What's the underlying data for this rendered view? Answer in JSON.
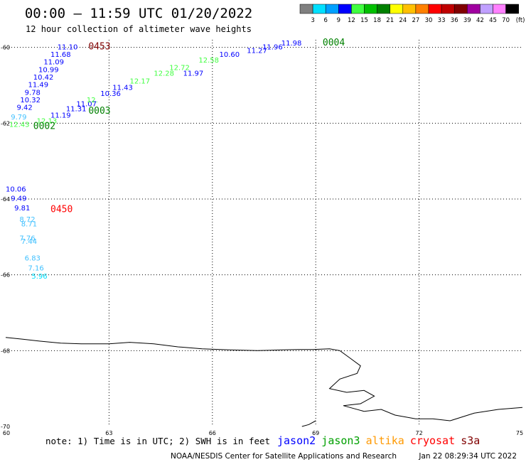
{
  "chart_data": {
    "type": "scatter",
    "title": "00:00 – 11:59 UTC 01/20/2022",
    "subtitle": "12 hour collection of altimeter wave heights",
    "x_ticks": [
      "60",
      "63",
      "66",
      "69",
      "72",
      "75"
    ],
    "y_ticks": [
      "-60",
      "-62",
      "-64",
      "-66",
      "-68",
      "-70"
    ],
    "xlim": [
      60,
      75
    ],
    "ylim": [
      -70,
      -59.8
    ],
    "grid": "dotted",
    "legend_scale": {
      "unit": "(ft)",
      "labels": [
        "3",
        "6",
        "9",
        "12",
        "15",
        "18",
        "21",
        "24",
        "27",
        "30",
        "33",
        "36",
        "39",
        "42",
        "45",
        "70"
      ],
      "colors": [
        "#808080",
        "#00e0ff",
        "#00a0ff",
        "#0000ff",
        "#40ff40",
        "#00c000",
        "#008000",
        "#ffff00",
        "#ffc000",
        "#ff8000",
        "#ff0000",
        "#c00000",
        "#800000",
        "#a000a0",
        "#c0a0ff",
        "#ff80ff",
        "#000000"
      ]
    },
    "points": [
      {
        "lon": 61.5,
        "lat": -60.05,
        "swh": "11.10",
        "color": "#0000ff"
      },
      {
        "lon": 61.3,
        "lat": -60.25,
        "swh": "11.68",
        "color": "#0000ff"
      },
      {
        "lon": 61.1,
        "lat": -60.45,
        "swh": "11.09",
        "color": "#0000ff"
      },
      {
        "lon": 60.95,
        "lat": -60.65,
        "swh": "10.99",
        "color": "#0000ff"
      },
      {
        "lon": 60.8,
        "lat": -60.85,
        "swh": "10.42",
        "color": "#0000ff"
      },
      {
        "lon": 60.65,
        "lat": -61.05,
        "swh": "11.49",
        "color": "#0000ff"
      },
      {
        "lon": 60.55,
        "lat": -61.25,
        "swh": "9.78",
        "color": "#0000ff"
      },
      {
        "lon": 60.42,
        "lat": -61.45,
        "swh": "10.32",
        "color": "#0000ff"
      },
      {
        "lon": 60.32,
        "lat": -61.65,
        "swh": "9.42",
        "color": "#0000ff"
      },
      {
        "lon": 60.15,
        "lat": -61.9,
        "swh": "9.79",
        "color": "#40c0ff"
      },
      {
        "lon": 60.1,
        "lat": -62.1,
        "swh": "12.43",
        "color": "#40ff40"
      },
      {
        "lon": 60.9,
        "lat": -62.0,
        "swh": "12.13",
        "color": "#40ff40"
      },
      {
        "lon": 61.3,
        "lat": -61.85,
        "swh": "11.19",
        "color": "#0000ff"
      },
      {
        "lon": 61.75,
        "lat": -61.68,
        "swh": "11.31",
        "color": "#0000ff"
      },
      {
        "lon": 62.05,
        "lat": -61.55,
        "swh": "11.07",
        "color": "#0000ff"
      },
      {
        "lon": 62.35,
        "lat": -61.45,
        "swh": "12.",
        "color": "#40ff40"
      },
      {
        "lon": 62.75,
        "lat": -61.28,
        "swh": "10.36",
        "color": "#0000ff"
      },
      {
        "lon": 63.1,
        "lat": -61.12,
        "swh": "11.43",
        "color": "#0000ff"
      },
      {
        "lon": 63.6,
        "lat": -60.95,
        "swh": "12.17",
        "color": "#40ff40"
      },
      {
        "lon": 64.3,
        "lat": -60.75,
        "swh": "12.28",
        "color": "#40ff40"
      },
      {
        "lon": 64.75,
        "lat": -60.6,
        "swh": "12.72",
        "color": "#40ff40"
      },
      {
        "lon": 65.15,
        "lat": -60.75,
        "swh": "11.97",
        "color": "#0000ff"
      },
      {
        "lon": 65.6,
        "lat": -60.4,
        "swh": "12.58",
        "color": "#40ff40"
      },
      {
        "lon": 66.2,
        "lat": -60.25,
        "swh": "10.60",
        "color": "#0000ff"
      },
      {
        "lon": 67.0,
        "lat": -60.15,
        "swh": "11.27",
        "color": "#0000ff"
      },
      {
        "lon": 67.45,
        "lat": -60.05,
        "swh": "11.96",
        "color": "#0000ff"
      },
      {
        "lon": 68.0,
        "lat": -59.95,
        "swh": "11.98",
        "color": "#0000ff"
      },
      {
        "lon": 60.0,
        "lat": -63.8,
        "swh": "10.06",
        "color": "#0000ff"
      },
      {
        "lon": 60.15,
        "lat": -64.05,
        "swh": "9.49",
        "color": "#0000ff"
      },
      {
        "lon": 60.25,
        "lat": -64.3,
        "swh": "9.81",
        "color": "#0000ff"
      },
      {
        "lon": 60.4,
        "lat": -64.6,
        "swh": "8.72",
        "color": "#40c0ff"
      },
      {
        "lon": 60.45,
        "lat": -64.72,
        "swh": "8.71",
        "color": "#40c0ff"
      },
      {
        "lon": 60.4,
        "lat": -65.1,
        "swh": "7.76",
        "color": "#40c0ff"
      },
      {
        "lon": 60.45,
        "lat": -65.18,
        "swh": "7.44",
        "color": "#40c0ff"
      },
      {
        "lon": 60.55,
        "lat": -65.62,
        "swh": "6.83",
        "color": "#40c0ff"
      },
      {
        "lon": 60.65,
        "lat": -65.88,
        "swh": "7.16",
        "color": "#40c0ff"
      },
      {
        "lon": 60.75,
        "lat": -66.1,
        "swh": "5.96",
        "color": "#00e0ff"
      }
    ],
    "time_labels": [
      {
        "lon": 62.4,
        "lat": -60.05,
        "text": "0453",
        "color": "#800000"
      },
      {
        "lon": 69.2,
        "lat": -59.95,
        "text": "0004",
        "color": "#008000"
      },
      {
        "lon": 62.4,
        "lat": -61.75,
        "text": "0003",
        "color": "#008000"
      },
      {
        "lon": 60.8,
        "lat": -62.15,
        "text": "0002",
        "color": "#008000"
      },
      {
        "lon": 61.3,
        "lat": -64.35,
        "text": "0450",
        "color": "#ff0000"
      }
    ],
    "coastline": [
      [
        60,
        -67.65
      ],
      [
        60.5,
        -67.7
      ],
      [
        61,
        -67.75
      ],
      [
        61.6,
        -67.8
      ],
      [
        62.2,
        -67.82
      ],
      [
        63,
        -67.82
      ],
      [
        63.6,
        -67.78
      ],
      [
        64.3,
        -67.82
      ],
      [
        65,
        -67.9
      ],
      [
        65.7,
        -67.95
      ],
      [
        66.5,
        -67.98
      ],
      [
        67.3,
        -68.0
      ],
      [
        68.0,
        -67.98
      ],
      [
        68.5,
        -67.97
      ],
      [
        68.9,
        -67.97
      ],
      [
        69.4,
        -67.95
      ],
      [
        69.7,
        -68.0
      ],
      [
        70.0,
        -68.2
      ],
      [
        70.3,
        -68.4
      ],
      [
        70.2,
        -68.6
      ],
      [
        69.7,
        -68.75
      ],
      [
        69.4,
        -69.0
      ],
      [
        69.9,
        -69.1
      ],
      [
        70.4,
        -69.05
      ],
      [
        70.7,
        -69.2
      ],
      [
        70.3,
        -69.4
      ],
      [
        69.8,
        -69.45
      ],
      [
        70.4,
        -69.6
      ],
      [
        70.9,
        -69.55
      ],
      [
        71.3,
        -69.7
      ],
      [
        71.9,
        -69.8
      ],
      [
        72.4,
        -69.8
      ],
      [
        72.9,
        -69.85
      ],
      [
        73.6,
        -69.65
      ],
      [
        74.3,
        -69.55
      ],
      [
        75,
        -69.5
      ]
    ],
    "coastline2": [
      [
        69.0,
        -69.85
      ],
      [
        68.8,
        -69.95
      ],
      [
        68.6,
        -70.0
      ]
    ]
  },
  "footer": {
    "note": "note:  1) Time is in UTC;  2) SWH is in feet",
    "satellites": [
      {
        "name": "jason2",
        "color": "#0000ff"
      },
      {
        "name": "jason3",
        "color": "#00a000"
      },
      {
        "name": "altika",
        "color": "#ff9900"
      },
      {
        "name": "cryosat",
        "color": "#ff0000"
      },
      {
        "name": "s3a",
        "color": "#800000"
      }
    ],
    "credit": "NOAA/NESDIS Center for Satellite Applications and Research",
    "timestamp": "Jan 22 08:29:34 UTC 2022"
  }
}
